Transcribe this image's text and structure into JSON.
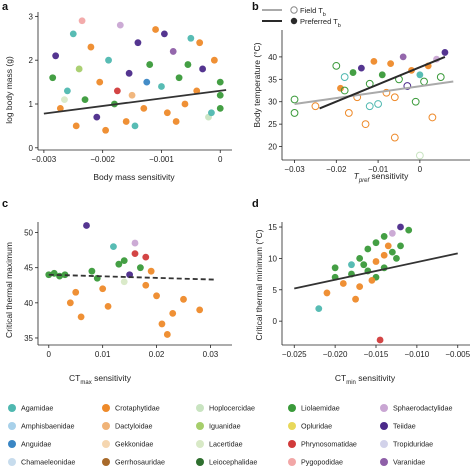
{
  "chart_data": [
    {
      "panel": "a",
      "type": "scatter",
      "xlabel": "Body mass sensitivity",
      "ylabel": "log body mass (g)",
      "xlim": [
        -0.0031,
        0.0002
      ],
      "ylim": [
        -0.05,
        3.1
      ],
      "xticks": [
        -0.003,
        -0.002,
        -0.001,
        0
      ],
      "xtick_labels": [
        "−0.003",
        "−0.002",
        "−0.001",
        "0"
      ],
      "yticks": [
        0,
        1,
        2,
        3
      ],
      "ytick_labels": [
        "0",
        "1",
        "2",
        "3"
      ],
      "fit_line": {
        "x": [
          -0.003,
          0.0001
        ],
        "y": [
          0.78,
          1.32
        ]
      },
      "points": [
        {
          "x": -0.00285,
          "y": 1.6,
          "family": "Liolaemidae"
        },
        {
          "x": -0.0028,
          "y": 2.1,
          "family": "Teiidae"
        },
        {
          "x": -0.00272,
          "y": 0.9,
          "family": "Crotaphytidae"
        },
        {
          "x": -0.0026,
          "y": 1.3,
          "family": "Agamidae"
        },
        {
          "x": -0.0025,
          "y": 2.6,
          "family": "Agamidae"
        },
        {
          "x": -0.00245,
          "y": 0.5,
          "family": "Crotaphytidae"
        },
        {
          "x": -0.0024,
          "y": 1.8,
          "family": "Iguanidae"
        },
        {
          "x": -0.0023,
          "y": 1.1,
          "family": "Liolaemidae"
        },
        {
          "x": -0.0022,
          "y": 2.3,
          "family": "Crotaphytidae"
        },
        {
          "x": -0.0021,
          "y": 0.7,
          "family": "Teiidae"
        },
        {
          "x": -0.00205,
          "y": 1.5,
          "family": "Crotaphytidae"
        },
        {
          "x": -0.0019,
          "y": 2.0,
          "family": "Agamidae"
        },
        {
          "x": -0.0018,
          "y": 1.0,
          "family": "Liolaemidae"
        },
        {
          "x": -0.0017,
          "y": 2.8,
          "family": "Sphaerodactylidae"
        },
        {
          "x": -0.0016,
          "y": 0.6,
          "family": "Crotaphytidae"
        },
        {
          "x": -0.00155,
          "y": 1.7,
          "family": "Teiidae"
        },
        {
          "x": -0.0015,
          "y": 1.2,
          "family": "Dactyloidae"
        },
        {
          "x": -0.0014,
          "y": 2.4,
          "family": "Teiidae"
        },
        {
          "x": -0.0013,
          "y": 0.9,
          "family": "Crotaphytidae"
        },
        {
          "x": -0.0012,
          "y": 1.9,
          "family": "Liolaemidae"
        },
        {
          "x": -0.0011,
          "y": 2.7,
          "family": "Crotaphytidae"
        },
        {
          "x": -0.001,
          "y": 1.4,
          "family": "Agamidae"
        },
        {
          "x": -0.0009,
          "y": 0.8,
          "family": "Crotaphytidae"
        },
        {
          "x": -0.0008,
          "y": 2.2,
          "family": "Varanidae"
        },
        {
          "x": -0.0007,
          "y": 1.6,
          "family": "Liolaemidae"
        },
        {
          "x": -0.0006,
          "y": 1.0,
          "family": "Crotaphytidae"
        },
        {
          "x": -0.0005,
          "y": 2.5,
          "family": "Agamidae"
        },
        {
          "x": -0.0004,
          "y": 1.3,
          "family": "Crotaphytidae"
        },
        {
          "x": -0.0003,
          "y": 1.8,
          "family": "Teiidae"
        },
        {
          "x": -0.0002,
          "y": 0.7,
          "family": "Hoplocercidae"
        },
        {
          "x": -0.0001,
          "y": 2.0,
          "family": "Crotaphytidae"
        },
        {
          "x": 0.0,
          "y": 1.2,
          "family": "Liolaemidae"
        },
        {
          "x": 0.0,
          "y": 1.5,
          "family": "Liolaemidae"
        },
        {
          "x": 0.0,
          "y": 0.9,
          "family": "Liolaemidae"
        },
        {
          "x": -0.00265,
          "y": 1.1,
          "family": "Lacertidae"
        },
        {
          "x": -0.00235,
          "y": 2.9,
          "family": "Pygopodidae"
        },
        {
          "x": -0.00195,
          "y": 0.4,
          "family": "Crotaphytidae"
        },
        {
          "x": -0.00175,
          "y": 1.3,
          "family": "Phrynosomatidae"
        },
        {
          "x": -0.00145,
          "y": 0.5,
          "family": "Agamidae"
        },
        {
          "x": -0.00125,
          "y": 1.5,
          "family": "Anguidae"
        },
        {
          "x": -0.00095,
          "y": 2.6,
          "family": "Teiidae"
        },
        {
          "x": -0.00075,
          "y": 0.6,
          "family": "Crotaphytidae"
        },
        {
          "x": -0.00055,
          "y": 1.9,
          "family": "Liolaemidae"
        },
        {
          "x": -0.00035,
          "y": 2.4,
          "family": "Crotaphytidae"
        },
        {
          "x": -0.00015,
          "y": 0.8,
          "family": "Agamidae"
        }
      ]
    },
    {
      "panel": "b",
      "type": "scatter",
      "xlabel": "Tpref sensitivity",
      "ylabel": "Body temperature (°C)",
      "xlim": [
        -0.033,
        0.012
      ],
      "ylim": [
        17,
        46
      ],
      "xticks": [
        -0.03,
        -0.02,
        -0.01,
        0
      ],
      "xtick_labels": [
        "−0.03",
        "−0.02",
        "−0.01",
        "0"
      ],
      "yticks": [
        20,
        25,
        30,
        35,
        40
      ],
      "ytick_labels": [
        "20",
        "25",
        "30",
        "35",
        "40"
      ],
      "legend": {
        "field_label": "Field T",
        "field_sub": "b",
        "preferred_label": "Preferred T",
        "preferred_sub": "b",
        "field_color": "#aaaaaa",
        "preferred_color": "#2a2a2a"
      },
      "field_line": {
        "x": [
          -0.03,
          0.008
        ],
        "y": [
          29.5,
          34.5
        ]
      },
      "preferred_line": {
        "x": [
          -0.024,
          0.006
        ],
        "y": [
          28.5,
          40.0
        ]
      },
      "points": [
        {
          "x": -0.03,
          "y": 27.5,
          "family": "Liolaemidae",
          "open": true
        },
        {
          "x": -0.03,
          "y": 30.5,
          "family": "Liolaemidae",
          "open": true
        },
        {
          "x": -0.025,
          "y": 29.0,
          "family": "Crotaphytidae",
          "open": true
        },
        {
          "x": -0.02,
          "y": 38.0,
          "family": "Liolaemidae",
          "open": true
        },
        {
          "x": -0.019,
          "y": 33.0,
          "family": "Crotaphytidae",
          "open": false
        },
        {
          "x": -0.018,
          "y": 35.5,
          "family": "Agamidae",
          "open": true
        },
        {
          "x": -0.017,
          "y": 27.5,
          "family": "Crotaphytidae",
          "open": true
        },
        {
          "x": -0.016,
          "y": 36.5,
          "family": "Liolaemidae",
          "open": false
        },
        {
          "x": -0.015,
          "y": 31.0,
          "family": "Crotaphytidae",
          "open": true
        },
        {
          "x": -0.014,
          "y": 37.5,
          "family": "Teiidae",
          "open": false
        },
        {
          "x": -0.013,
          "y": 25.0,
          "family": "Crotaphytidae",
          "open": true
        },
        {
          "x": -0.012,
          "y": 34.0,
          "family": "Liolaemidae",
          "open": true
        },
        {
          "x": -0.011,
          "y": 39.0,
          "family": "Crotaphytidae",
          "open": false
        },
        {
          "x": -0.01,
          "y": 29.5,
          "family": "Agamidae",
          "open": true
        },
        {
          "x": -0.009,
          "y": 36.0,
          "family": "Liolaemidae",
          "open": false
        },
        {
          "x": -0.008,
          "y": 32.0,
          "family": "Crotaphytidae",
          "open": true
        },
        {
          "x": -0.007,
          "y": 38.5,
          "family": "Crotaphytidae",
          "open": false
        },
        {
          "x": -0.006,
          "y": 22.0,
          "family": "Crotaphytidae",
          "open": true
        },
        {
          "x": -0.005,
          "y": 35.0,
          "family": "Liolaemidae",
          "open": true
        },
        {
          "x": -0.004,
          "y": 40.0,
          "family": "Varanidae",
          "open": false
        },
        {
          "x": -0.003,
          "y": 33.5,
          "family": "Teiidae",
          "open": true
        },
        {
          "x": -0.002,
          "y": 37.0,
          "family": "Crotaphytidae",
          "open": false
        },
        {
          "x": -0.001,
          "y": 30.0,
          "family": "Liolaemidae",
          "open": true
        },
        {
          "x": 0.0,
          "y": 36.0,
          "family": "Agamidae",
          "open": false
        },
        {
          "x": 0.001,
          "y": 34.5,
          "family": "Liolaemidae",
          "open": true
        },
        {
          "x": 0.002,
          "y": 38.0,
          "family": "Crotaphytidae",
          "open": false
        },
        {
          "x": 0.003,
          "y": 26.5,
          "family": "Crotaphytidae",
          "open": true
        },
        {
          "x": 0.004,
          "y": 39.5,
          "family": "Sphaerodactylidae",
          "open": false
        },
        {
          "x": 0.005,
          "y": 35.5,
          "family": "Liolaemidae",
          "open": true
        },
        {
          "x": 0.006,
          "y": 41.0,
          "family": "Teiidae",
          "open": false
        },
        {
          "x": 0.0,
          "y": 18.0,
          "family": "Hoplocercidae",
          "open": true
        },
        {
          "x": -0.012,
          "y": 29.0,
          "family": "Agamidae",
          "open": true
        },
        {
          "x": -0.018,
          "y": 32.5,
          "family": "Liolaemidae",
          "open": true
        },
        {
          "x": -0.006,
          "y": 31.0,
          "family": "Crotaphytidae",
          "open": true
        }
      ]
    },
    {
      "panel": "c",
      "type": "scatter",
      "xlabel": "CTmax sensitivity",
      "ylabel": "Critical thermal maximum",
      "xlim": [
        -0.002,
        0.034
      ],
      "ylim": [
        34,
        51.5
      ],
      "xticks": [
        0,
        0.01,
        0.02,
        0.03
      ],
      "xtick_labels": [
        "0",
        "0.01",
        "0.02",
        "0.03"
      ],
      "yticks": [
        35,
        40,
        45,
        50
      ],
      "ytick_labels": [
        "35",
        "40",
        "45",
        "50"
      ],
      "fit_line": {
        "x": [
          0.0,
          0.031
        ],
        "y": [
          44.0,
          43.3
        ]
      },
      "points": [
        {
          "x": 0.0,
          "y": 44.0,
          "family": "Liolaemidae"
        },
        {
          "x": 0.001,
          "y": 44.2,
          "family": "Liolaemidae"
        },
        {
          "x": 0.002,
          "y": 43.8,
          "family": "Liolaemidae"
        },
        {
          "x": 0.003,
          "y": 44.0,
          "family": "Liolaemidae"
        },
        {
          "x": 0.004,
          "y": 40.0,
          "family": "Crotaphytidae"
        },
        {
          "x": 0.005,
          "y": 41.5,
          "family": "Crotaphytidae"
        },
        {
          "x": 0.006,
          "y": 38.0,
          "family": "Crotaphytidae"
        },
        {
          "x": 0.007,
          "y": 51.0,
          "family": "Teiidae"
        },
        {
          "x": 0.008,
          "y": 44.5,
          "family": "Liolaemidae"
        },
        {
          "x": 0.009,
          "y": 43.5,
          "family": "Liolaemidae"
        },
        {
          "x": 0.01,
          "y": 42.0,
          "family": "Crotaphytidae"
        },
        {
          "x": 0.011,
          "y": 39.5,
          "family": "Crotaphytidae"
        },
        {
          "x": 0.012,
          "y": 48.0,
          "family": "Agamidae"
        },
        {
          "x": 0.013,
          "y": 45.5,
          "family": "Liolaemidae"
        },
        {
          "x": 0.014,
          "y": 46.0,
          "family": "Liolaemidae"
        },
        {
          "x": 0.015,
          "y": 44.0,
          "family": "Teiidae"
        },
        {
          "x": 0.016,
          "y": 47.0,
          "family": "Phrynosomatidae"
        },
        {
          "x": 0.017,
          "y": 45.0,
          "family": "Liolaemidae"
        },
        {
          "x": 0.018,
          "y": 42.5,
          "family": "Crotaphytidae"
        },
        {
          "x": 0.019,
          "y": 44.5,
          "family": "Crotaphytidae"
        },
        {
          "x": 0.02,
          "y": 41.0,
          "family": "Crotaphytidae"
        },
        {
          "x": 0.021,
          "y": 37.0,
          "family": "Crotaphytidae"
        },
        {
          "x": 0.022,
          "y": 35.5,
          "family": "Crotaphytidae"
        },
        {
          "x": 0.023,
          "y": 38.5,
          "family": "Crotaphytidae"
        },
        {
          "x": 0.025,
          "y": 40.5,
          "family": "Crotaphytidae"
        },
        {
          "x": 0.028,
          "y": 39.0,
          "family": "Crotaphytidae"
        },
        {
          "x": 0.016,
          "y": 48.5,
          "family": "Sphaerodactylidae"
        },
        {
          "x": 0.018,
          "y": 46.5,
          "family": "Phrynosomatidae"
        },
        {
          "x": 0.014,
          "y": 43.0,
          "family": "Lacertidae"
        }
      ]
    },
    {
      "panel": "d",
      "type": "scatter",
      "xlabel": "CTmin sensitivity",
      "ylabel": "Critical thermal minimum (°C)",
      "xlim": [
        -0.0265,
        -0.0035
      ],
      "ylim": [
        -3.8,
        15.8
      ],
      "xticks": [
        -0.025,
        -0.02,
        -0.015,
        -0.01,
        -0.005
      ],
      "xtick_labels": [
        "−0.025",
        "−0.020",
        "−0.015",
        "−0.010",
        "−0.005"
      ],
      "yticks": [
        0,
        5,
        10,
        15
      ],
      "ytick_labels": [
        "0",
        "5",
        "10",
        "15"
      ],
      "fit_line": {
        "x": [
          -0.025,
          -0.005
        ],
        "y": [
          5.2,
          10.8
        ]
      },
      "points": [
        {
          "x": -0.022,
          "y": 2.0,
          "family": "Agamidae"
        },
        {
          "x": -0.021,
          "y": 4.5,
          "family": "Crotaphytidae"
        },
        {
          "x": -0.02,
          "y": 7.0,
          "family": "Liolaemidae"
        },
        {
          "x": -0.02,
          "y": 8.5,
          "family": "Liolaemidae"
        },
        {
          "x": -0.019,
          "y": 6.0,
          "family": "Crotaphytidae"
        },
        {
          "x": -0.018,
          "y": 9.0,
          "family": "Agamidae"
        },
        {
          "x": -0.018,
          "y": 7.5,
          "family": "Liolaemidae"
        },
        {
          "x": -0.017,
          "y": 10.0,
          "family": "Liolaemidae"
        },
        {
          "x": -0.017,
          "y": 5.5,
          "family": "Crotaphytidae"
        },
        {
          "x": -0.016,
          "y": 8.0,
          "family": "Liolaemidae"
        },
        {
          "x": -0.016,
          "y": 11.5,
          "family": "Liolaemidae"
        },
        {
          "x": -0.015,
          "y": 9.5,
          "family": "Crotaphytidae"
        },
        {
          "x": -0.015,
          "y": 7.0,
          "family": "Liolaemidae"
        },
        {
          "x": -0.015,
          "y": 12.5,
          "family": "Liolaemidae"
        },
        {
          "x": -0.014,
          "y": 10.5,
          "family": "Crotaphytidae"
        },
        {
          "x": -0.014,
          "y": 8.5,
          "family": "Liolaemidae"
        },
        {
          "x": -0.014,
          "y": 13.5,
          "family": "Liolaemidae"
        },
        {
          "x": -0.013,
          "y": 11.0,
          "family": "Liolaemidae"
        },
        {
          "x": -0.013,
          "y": 14.0,
          "family": "Sphaerodactylidae"
        },
        {
          "x": -0.012,
          "y": 12.0,
          "family": "Liolaemidae"
        },
        {
          "x": -0.012,
          "y": 15.0,
          "family": "Teiidae"
        },
        {
          "x": -0.011,
          "y": 14.5,
          "family": "Liolaemidae"
        },
        {
          "x": -0.0145,
          "y": -3.0,
          "family": "Phrynosomatidae"
        },
        {
          "x": -0.0155,
          "y": 6.5,
          "family": "Crotaphytidae"
        },
        {
          "x": -0.0165,
          "y": 9.0,
          "family": "Liolaemidae"
        },
        {
          "x": -0.0175,
          "y": 3.5,
          "family": "Crotaphytidae"
        },
        {
          "x": -0.0125,
          "y": 10.0,
          "family": "Liolaemidae"
        },
        {
          "x": -0.0135,
          "y": 12.0,
          "family": "Crotaphytidae"
        }
      ]
    }
  ],
  "panel_labels": {
    "a": "a",
    "b": "b",
    "c": "c",
    "d": "d"
  },
  "axis_titles": {
    "a_x": "Body mass sensitivity",
    "a_y": "log body mass (g)",
    "b_x_main": "T",
    "b_x_sub": "pref",
    "b_x_rest": " sensitivity",
    "b_y": "Body temperature (°C)",
    "c_x_main": "CT",
    "c_x_sub": "max",
    "c_x_rest": " sensitivity",
    "c_y": "Critical thermal maximum",
    "d_x_main": "CT",
    "d_x_sub": "min",
    "d_x_rest": " sensitivity",
    "d_y": "Critical thermal minimum (°C)"
  },
  "legend": [
    {
      "label": "Agamidae",
      "color": "#4fb8b0"
    },
    {
      "label": "Crotaphytidae",
      "color": "#ee8a2a"
    },
    {
      "label": "Hoplocercidae",
      "color": "#c9e4c1"
    },
    {
      "label": "Liolaemidae",
      "color": "#3a9a3a"
    },
    {
      "label": "Sphaerodactylidae",
      "color": "#c9a6d3"
    },
    {
      "label": "Amphisbaenidae",
      "color": "#a8d1ea"
    },
    {
      "label": "Dactyloidae",
      "color": "#f0b377"
    },
    {
      "label": "Iguanidae",
      "color": "#a6ce6b"
    },
    {
      "label": "Opluridae",
      "color": "#e8d85a"
    },
    {
      "label": "Teiidae",
      "color": "#4b2a8a"
    },
    {
      "label": "Anguidae",
      "color": "#3a86c4"
    },
    {
      "label": "Gekkonidae",
      "color": "#f5d6b0"
    },
    {
      "label": "Lacertidae",
      "color": "#d8e9c6"
    },
    {
      "label": "Phrynosomatidae",
      "color": "#d13b3b"
    },
    {
      "label": "Tropiduridae",
      "color": "#d2d2ea"
    },
    {
      "label": "Chamaeleonidae",
      "color": "#c7dced"
    },
    {
      "label": "Gerrhosauridae",
      "color": "#a86a2a"
    },
    {
      "label": "Leiocephalidae",
      "color": "#2f6f2f"
    },
    {
      "label": "Pygopodidae",
      "color": "#f2a7a7"
    },
    {
      "label": "Varanidae",
      "color": "#8e5fa8"
    }
  ]
}
